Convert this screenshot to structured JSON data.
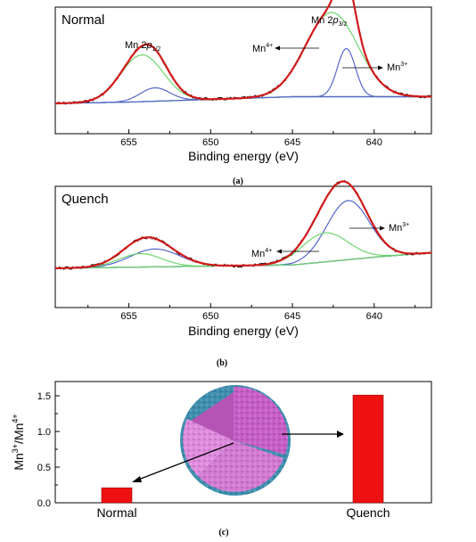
{
  "chart_data": [
    {
      "type": "line",
      "panel_label": "Normal",
      "caption": "(a)",
      "xlabel": "Binding energy (eV)",
      "xlim": [
        659.5,
        636.5
      ],
      "xticks": [
        "655",
        "650",
        "645",
        "640"
      ],
      "xtick_values": [
        655,
        650,
        645,
        640
      ],
      "annotations": {
        "mn2p12": [
          "Mn 2",
          "p",
          "1/2"
        ],
        "mn2p32": [
          "Mn 2",
          "p",
          "3/2"
        ],
        "mn4": [
          "Mn",
          "4+"
        ],
        "mn3": [
          "Mn",
          "3+"
        ]
      },
      "baseline": [
        [
          659.5,
          0.0
        ],
        [
          655,
          0.01
        ],
        [
          650,
          0.03
        ],
        [
          645,
          0.05
        ],
        [
          640,
          0.05
        ],
        [
          636.5,
          0.05
        ]
      ],
      "peaks": [
        {
          "component": "Mn4+ 2p3/2",
          "center": 642.6,
          "height": 0.63,
          "width": 1.6,
          "color": "#6cd66c"
        },
        {
          "component": "Mn3+ 2p3/2",
          "center": 641.7,
          "height": 0.36,
          "width": 0.55,
          "color": "#5566cc"
        },
        {
          "component": "Mn4+ 2p1/2",
          "center": 654.2,
          "height": 0.35,
          "width": 1.3,
          "color": "#6cd66c"
        },
        {
          "component": "Mn3+ 2p1/2",
          "center": 653.4,
          "height": 0.1,
          "width": 0.9,
          "color": "#5566cc"
        }
      ],
      "colors": {
        "envelope": "#d21a1a",
        "raw": "#111111",
        "background": "#4466cc"
      }
    },
    {
      "type": "line",
      "panel_label": "Quench",
      "caption": "(b)",
      "xlabel": "Binding energy (eV)",
      "xlim": [
        659.5,
        636.5
      ],
      "xticks": [
        "655",
        "650",
        "645",
        "640"
      ],
      "xtick_values": [
        655,
        650,
        645,
        640
      ],
      "annotations": {
        "mn4": [
          "Mn",
          "4+"
        ],
        "mn3": [
          "Mn",
          "3+"
        ]
      },
      "baseline": [
        [
          659.5,
          0.0
        ],
        [
          655,
          0.01
        ],
        [
          650,
          0.02
        ],
        [
          645,
          0.03
        ],
        [
          640,
          0.1
        ],
        [
          636.5,
          0.14
        ]
      ],
      "peaks": [
        {
          "component": "Mn3+ 2p3/2",
          "center": 641.6,
          "height": 0.53,
          "width": 1.3,
          "color": "#5566cc"
        },
        {
          "component": "Mn4+ 2p3/2",
          "center": 643.0,
          "height": 0.26,
          "width": 1.4,
          "color": "#6cd66c"
        },
        {
          "component": "Mn3+ 2p1/2",
          "center": 653.4,
          "height": 0.16,
          "width": 1.5,
          "color": "#5566cc"
        },
        {
          "component": "Mn4+ 2p1/2",
          "center": 654.3,
          "height": 0.12,
          "width": 1.3,
          "color": "#6cd66c"
        }
      ],
      "colors": {
        "envelope": "#d21a1a",
        "raw": "#111111",
        "background": "#555555"
      }
    },
    {
      "type": "bar",
      "caption": "(c)",
      "categories": [
        "Normal",
        "Quench"
      ],
      "values": [
        0.21,
        1.51
      ],
      "ylabel": [
        "Mn",
        "3+",
        "/Mn",
        "4+"
      ],
      "ylim": [
        0,
        1.7
      ],
      "yticks": [
        "0.0",
        "0.5",
        "1.0",
        "1.5"
      ],
      "ytick_values": [
        0,
        0.5,
        1.0,
        1.5
      ],
      "bar_color": "#ee1111",
      "inset": "nanoparticle-cutaway",
      "inset_colors": {
        "shell": "#3f8fb0",
        "core": "#d47ad4"
      }
    }
  ]
}
